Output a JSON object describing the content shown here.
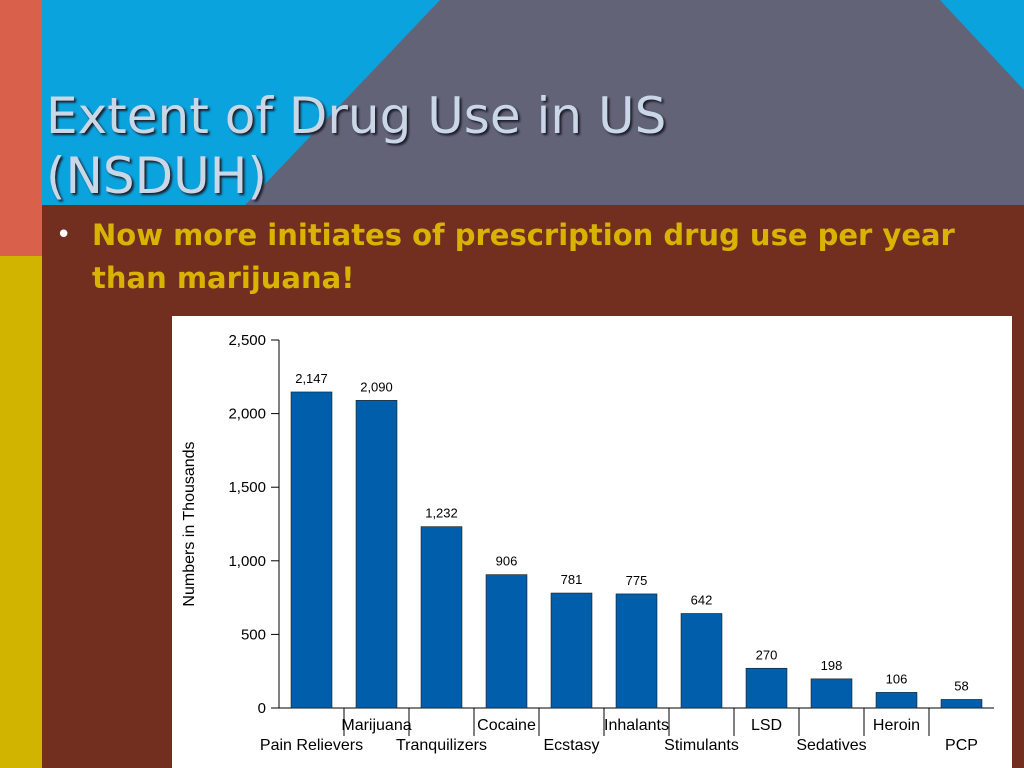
{
  "slide": {
    "title_line1": "Extent of Drug Use in US",
    "title_line2": "(NSDUH)",
    "bullet": "Now more initiates of prescription drug use per year than marijuana!",
    "colors": {
      "background": "#722e1f",
      "sky": "#0aa3de",
      "mountain": "#636378",
      "left_stripe_top": "#d9604a",
      "left_stripe_bottom": "#d1b400",
      "title_text": "#c9d7e6",
      "bullet_text": "#d8b400",
      "bar": "#005eab"
    }
  },
  "chart_data": {
    "type": "bar",
    "categories": [
      "Pain Relievers",
      "Marijuana",
      "Tranquilizers",
      "Cocaine",
      "Ecstasy",
      "Inhalants",
      "Stimulants",
      "LSD",
      "Sedatives",
      "Heroin",
      "PCP"
    ],
    "values": [
      2147,
      2090,
      1232,
      906,
      781,
      775,
      642,
      270,
      198,
      106,
      58
    ],
    "value_labels": [
      "2,147",
      "2,090",
      "1,232",
      "906",
      "781",
      "775",
      "642",
      "270",
      "198",
      "106",
      "58"
    ],
    "ylabel": "Numbers in Thousands",
    "xlabel": "",
    "title": "",
    "ylim": [
      0,
      2500
    ],
    "yticks": [
      0,
      500,
      1000,
      1500,
      2000,
      2500
    ],
    "ytick_labels": [
      "0",
      "500",
      "1,000",
      "1,500",
      "2,000",
      "2,500"
    ],
    "grid": false,
    "legend": "none",
    "color": "#005eab"
  }
}
